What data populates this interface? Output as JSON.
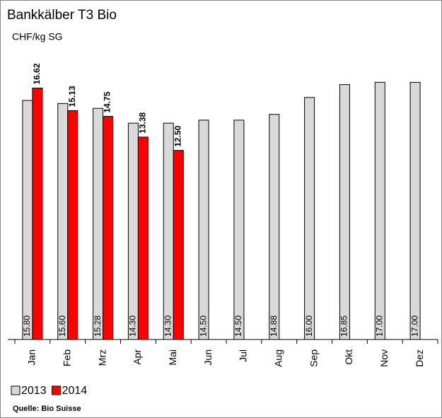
{
  "chart_data": {
    "type": "bar",
    "title": "Bankkälber T3 Bio",
    "subtitle": "CHF/kg SG",
    "source": "Quelle: Bio Suisse",
    "categories": [
      "Jan",
      "Feb",
      "Mrz",
      "Apr",
      "Mai",
      "Jun",
      "Jul",
      "Aug",
      "Sep",
      "Okt",
      "Nov",
      "Dez"
    ],
    "series": [
      {
        "name": "2013",
        "color": "#d9d9d9",
        "values": [
          15.8,
          15.6,
          15.28,
          14.3,
          14.3,
          14.5,
          14.5,
          14.88,
          16,
          16.85,
          17,
          17
        ],
        "value_labels": [
          "15.80",
          "15.60",
          "15.28",
          "14.30",
          "14.30",
          "14.50",
          "14.50",
          "14.88",
          "16.00",
          "16.85",
          "17.00",
          "17.00"
        ]
      },
      {
        "name": "2014",
        "color": "#ff0000",
        "values": [
          16.62,
          15.13,
          14.75,
          13.38,
          12.5,
          null,
          null,
          null,
          null,
          null,
          null,
          null
        ],
        "value_labels": [
          "16.62",
          "15.13",
          "14.75",
          "13.38",
          "12.50",
          null,
          null,
          null,
          null,
          null,
          null,
          null
        ]
      }
    ],
    "ylim": [
      0,
      18
    ]
  }
}
